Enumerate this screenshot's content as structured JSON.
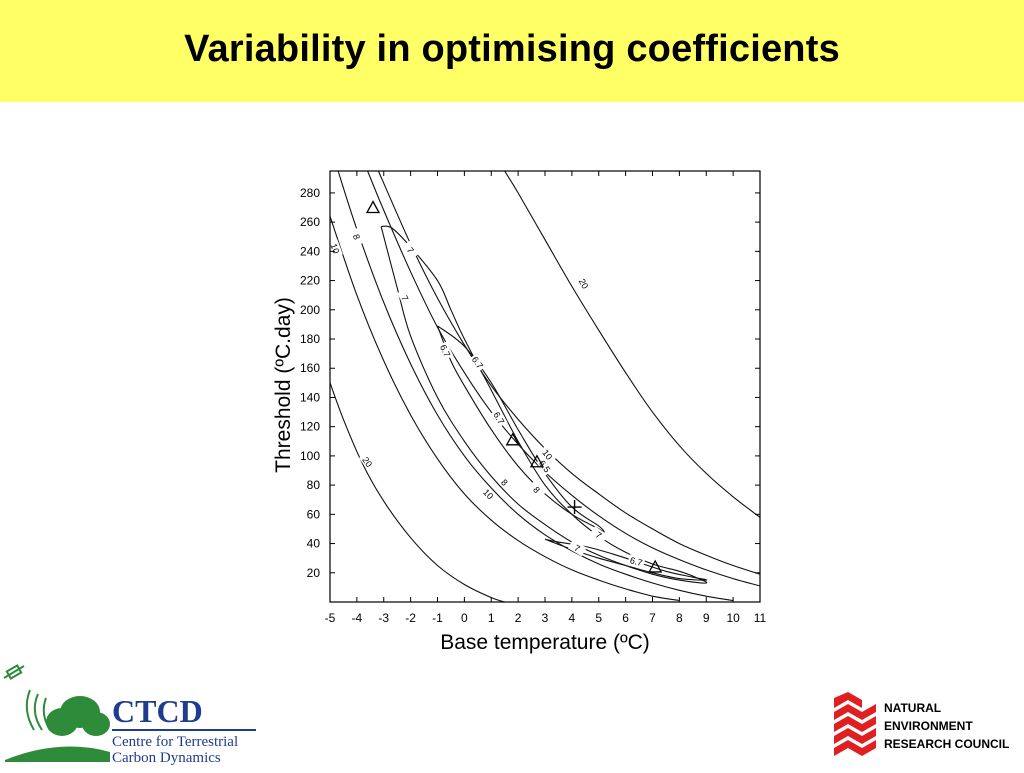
{
  "slide": {
    "title": "Variability in optimising coefficients",
    "background": "#ffffff",
    "title_bar_color": "#ffff66"
  },
  "chart_data": {
    "type": "contour",
    "xlabel": "Base temperature (ºC)",
    "ylabel": "Threshold (ºC.day)",
    "xlim": [
      -5,
      11
    ],
    "ylim": [
      0,
      295
    ],
    "x_ticks": [
      -5,
      -4,
      -3,
      -2,
      -1,
      0,
      1,
      2,
      3,
      4,
      5,
      6,
      7,
      8,
      9,
      10,
      11
    ],
    "y_ticks": [
      20,
      40,
      60,
      80,
      100,
      120,
      140,
      160,
      180,
      200,
      220,
      240,
      260,
      280
    ],
    "grid": false,
    "contours": [
      {
        "level": "20",
        "points": [
          [
            -5,
            150
          ],
          [
            -4.5,
            125
          ],
          [
            -3.8,
            95
          ],
          [
            -3,
            69
          ],
          [
            -2,
            44
          ],
          [
            -1,
            25
          ],
          [
            0,
            12
          ],
          [
            1,
            3
          ],
          [
            1.5,
            0
          ]
        ]
      },
      {
        "level": "10",
        "points": [
          [
            -5,
            264
          ],
          [
            -4,
            210
          ],
          [
            -3,
            165
          ],
          [
            -2,
            128
          ],
          [
            -1,
            98
          ],
          [
            0,
            74
          ],
          [
            1,
            56
          ],
          [
            2,
            42
          ],
          [
            3,
            31
          ],
          [
            4,
            22
          ],
          [
            5,
            15
          ],
          [
            6,
            9
          ],
          [
            7,
            4
          ],
          [
            8,
            1
          ]
        ]
      },
      {
        "level": "8",
        "points": [
          [
            -4.7,
            295
          ],
          [
            -4,
            255
          ],
          [
            -3,
            205
          ],
          [
            -2,
            163
          ],
          [
            -1,
            128
          ],
          [
            0,
            100
          ],
          [
            1,
            78
          ],
          [
            2,
            60
          ],
          [
            3,
            46
          ],
          [
            4,
            35
          ],
          [
            5,
            26
          ],
          [
            6,
            19
          ],
          [
            7,
            13
          ],
          [
            8,
            8
          ],
          [
            9,
            4
          ],
          [
            10,
            1
          ]
        ]
      },
      {
        "level": "7",
        "points": [
          [
            -3.1,
            257
          ],
          [
            -2.5,
            215
          ],
          [
            -2,
            182
          ],
          [
            -1,
            140
          ],
          [
            0,
            110
          ],
          [
            1,
            86
          ],
          [
            2,
            67
          ],
          [
            3,
            53
          ],
          [
            4,
            41
          ],
          [
            5,
            32
          ],
          [
            6,
            25
          ],
          [
            7,
            19
          ],
          [
            8,
            15
          ],
          [
            9,
            13
          ],
          [
            8.6,
            17
          ],
          [
            8,
            21
          ],
          [
            7,
            26
          ],
          [
            6,
            34
          ],
          [
            5,
            45
          ],
          [
            4,
            60
          ],
          [
            3,
            80
          ],
          [
            2,
            110
          ],
          [
            1,
            145
          ],
          [
            0,
            180
          ],
          [
            -0.5,
            200
          ],
          [
            -1,
            220
          ],
          [
            -2,
            243
          ],
          [
            -2.7,
            256
          ],
          [
            -3.1,
            257
          ]
        ]
      },
      {
        "level": "6.7",
        "points": [
          [
            -1,
            189
          ],
          [
            -0.5,
            165
          ],
          [
            0,
            148
          ],
          [
            1,
            118
          ],
          [
            2,
            93
          ],
          [
            3,
            74
          ],
          [
            4,
            60
          ],
          [
            5,
            50
          ],
          [
            5.2,
            48
          ],
          [
            5,
            52
          ],
          [
            4,
            65
          ],
          [
            3,
            88
          ],
          [
            2,
            118
          ],
          [
            1,
            150
          ],
          [
            0,
            175
          ],
          [
            -1,
            189
          ]
        ]
      },
      {
        "level": "6.7",
        "points": [
          [
            3,
            43
          ],
          [
            4,
            36
          ],
          [
            5,
            30
          ],
          [
            6,
            25
          ],
          [
            7,
            20
          ],
          [
            8,
            16
          ],
          [
            9,
            15
          ],
          [
            8.5,
            17
          ],
          [
            7.5,
            21
          ],
          [
            6.5,
            27
          ],
          [
            5.5,
            33
          ],
          [
            4.5,
            38
          ],
          [
            3.5,
            41
          ],
          [
            3,
            43
          ]
        ]
      },
      {
        "level": "10",
        "points": [
          [
            -3.2,
            295
          ],
          [
            -2,
            245
          ],
          [
            -1,
            208
          ],
          [
            0,
            176
          ],
          [
            1,
            148
          ],
          [
            2,
            125
          ],
          [
            3,
            105
          ],
          [
            4,
            88
          ],
          [
            5,
            74
          ],
          [
            6,
            61
          ],
          [
            7,
            50
          ],
          [
            8,
            40
          ],
          [
            9,
            32
          ],
          [
            10,
            25
          ],
          [
            11,
            19
          ]
        ]
      },
      {
        "level": "8",
        "points": [
          [
            -3.6,
            295
          ],
          [
            -3,
            268
          ],
          [
            -2,
            226
          ],
          [
            -1,
            188
          ],
          [
            0,
            157
          ],
          [
            1,
            130
          ],
          [
            2,
            108
          ],
          [
            3,
            89
          ],
          [
            4,
            73
          ],
          [
            5,
            59
          ],
          [
            6,
            47
          ],
          [
            7,
            37
          ],
          [
            8,
            29
          ],
          [
            9,
            22
          ],
          [
            10,
            16
          ],
          [
            11,
            11
          ]
        ]
      },
      {
        "level": "20",
        "points": [
          [
            1.5,
            295
          ],
          [
            2,
            280
          ],
          [
            3,
            248
          ],
          [
            4,
            216
          ],
          [
            5,
            186
          ],
          [
            6,
            157
          ],
          [
            7,
            130
          ],
          [
            8,
            107
          ],
          [
            9,
            88
          ],
          [
            10,
            72
          ],
          [
            11,
            58
          ]
        ]
      }
    ],
    "contour_labels": [
      {
        "text": "20",
        "x": 4.45,
        "y": 218,
        "angle": 62
      },
      {
        "text": "10",
        "x": 3.1,
        "y": 101,
        "angle": 52
      },
      {
        "text": "8",
        "x": 2.7,
        "y": 77,
        "angle": 50
      },
      {
        "text": "7",
        "x": 5.0,
        "y": 46,
        "angle": 35
      },
      {
        "text": "7",
        "x": 4.2,
        "y": 37,
        "angle": 30
      },
      {
        "text": "8",
        "x": -4.0,
        "y": 250,
        "angle": 70
      },
      {
        "text": "10",
        "x": -4.8,
        "y": 242,
        "angle": 70
      },
      {
        "text": "7",
        "x": -2.0,
        "y": 241,
        "angle": 55
      },
      {
        "text": "7",
        "x": -2.2,
        "y": 208,
        "angle": 65
      },
      {
        "text": "6.7",
        "x": 0.5,
        "y": 164,
        "angle": 55
      },
      {
        "text": "6.7",
        "x": -0.7,
        "y": 172,
        "angle": 65
      },
      {
        "text": "6.7",
        "x": 1.3,
        "y": 126,
        "angle": 60
      },
      {
        "text": "6.5",
        "x": 3.0,
        "y": 93,
        "angle": 55
      },
      {
        "text": "6.7",
        "x": 6.4,
        "y": 28,
        "angle": 15
      },
      {
        "text": "8",
        "x": 1.5,
        "y": 82,
        "angle": 45
      },
      {
        "text": "10",
        "x": 0.9,
        "y": 74,
        "angle": 45
      },
      {
        "text": "20",
        "x": -3.6,
        "y": 96,
        "angle": 55
      }
    ],
    "markers": [
      {
        "type": "triangle",
        "x": -3.4,
        "y": 270
      },
      {
        "type": "triangle",
        "x": 1.8,
        "y": 111
      },
      {
        "type": "triangle",
        "x": 2.7,
        "y": 96
      },
      {
        "type": "triangle",
        "x": 7.1,
        "y": 24
      },
      {
        "type": "cross",
        "x": 4.1,
        "y": 65
      }
    ]
  },
  "logos": {
    "ctcd_name": "CTCD",
    "ctcd_line1": "Centre for Terrestrial",
    "ctcd_line2": "Carbon Dynamics",
    "nerc_line1": "NATURAL",
    "nerc_line2": "ENVIRONMENT",
    "nerc_line3": "RESEARCH COUNCIL"
  },
  "colors": {
    "ctcd_blue": "#1f3d8c",
    "ctcd_green": "#2e8b3a",
    "nerc_red": "#e02020"
  }
}
